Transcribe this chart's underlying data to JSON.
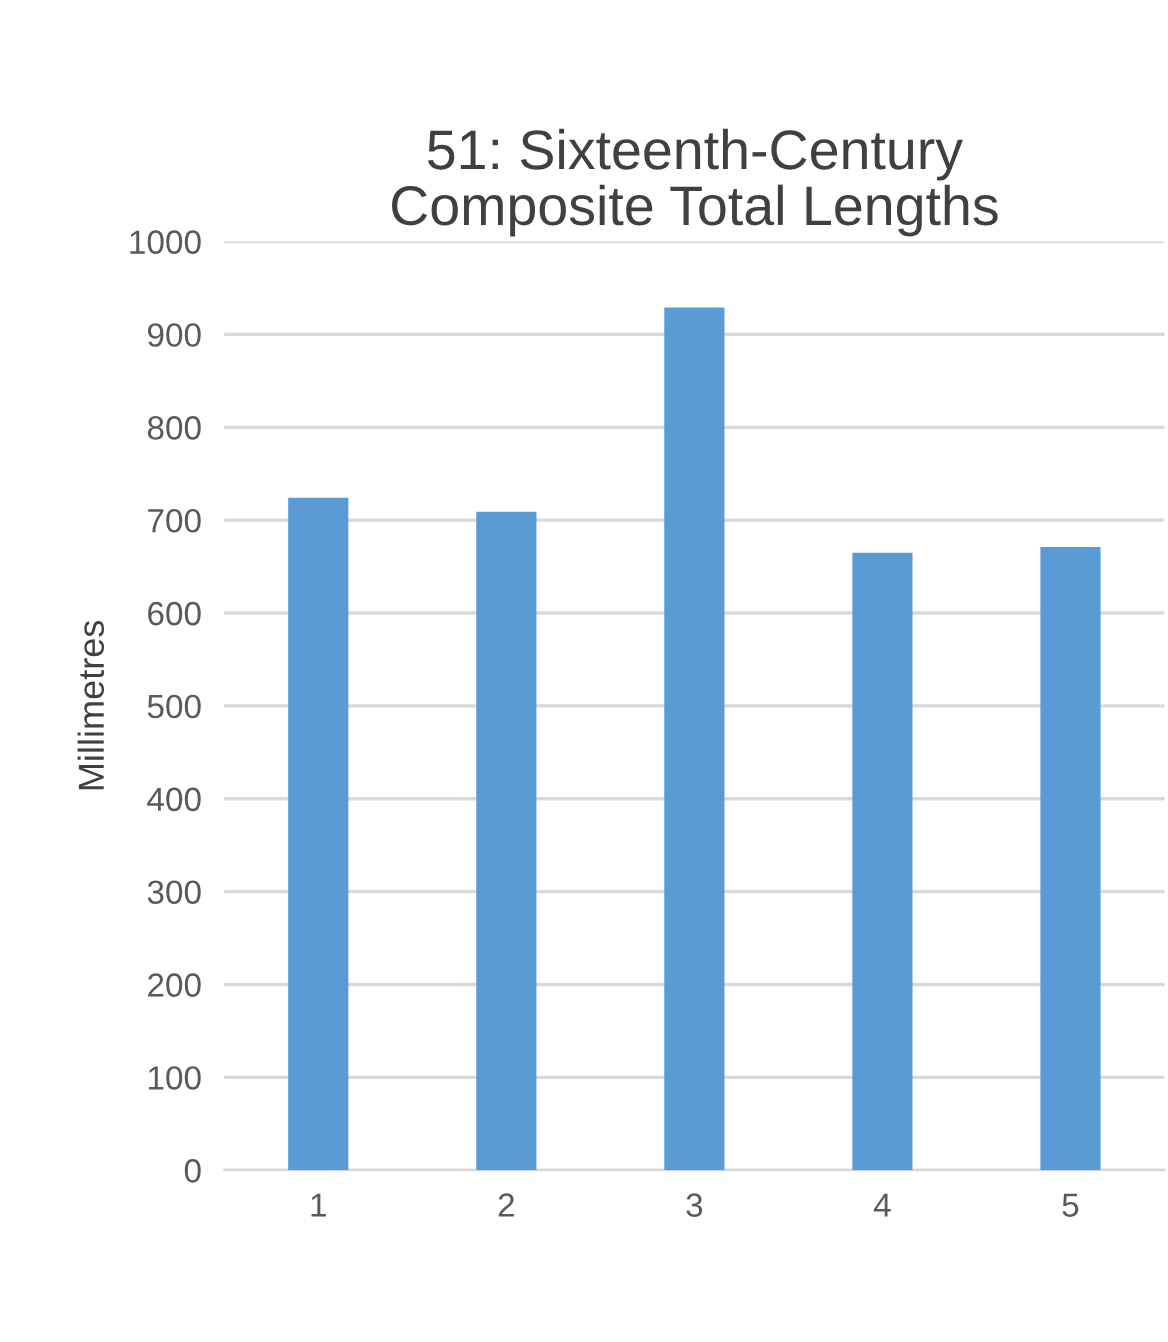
{
  "chart_data": {
    "type": "bar",
    "title": "51: Sixteenth-Century\nComposite Total Lengths",
    "ylabel": "Millimetres",
    "categories": [
      "1",
      "2",
      "3",
      "4",
      "5"
    ],
    "values": [
      724,
      709,
      929,
      665,
      671
    ],
    "color": "#5b9bd5",
    "ylim": [
      0,
      1000
    ],
    "yticks": [
      0,
      100,
      200,
      300,
      400,
      500,
      600,
      700,
      800,
      900,
      1000
    ],
    "grid": "y",
    "legend": false
  }
}
